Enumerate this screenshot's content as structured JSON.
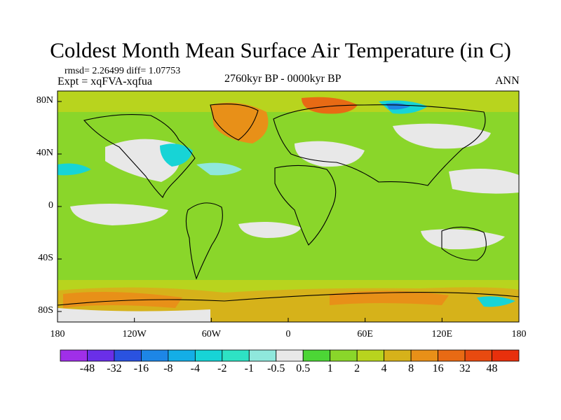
{
  "title": "Coldest Month Mean Surface Air Temperature (in C)",
  "stats": "rmsd= 2.26499 diff= 1.07753",
  "experiment": "Expt = xqFVA-xqfua",
  "period": "2760kyr BP - 0000kyr BP",
  "season": "ANN",
  "lat_labels": [
    "80N",
    "40N",
    "0",
    "40S",
    "80S"
  ],
  "lon_labels": [
    "180",
    "120W",
    "60W",
    "0",
    "60E",
    "120E",
    "180"
  ],
  "colorbar": {
    "labels": [
      "-48",
      "-32",
      "-16",
      "-8",
      "-4",
      "-2",
      "-1",
      "-0.5",
      "0.5",
      "1",
      "2",
      "4",
      "8",
      "16",
      "32",
      "48"
    ],
    "colors": [
      "#a02fe8",
      "#6a2fe8",
      "#2a52e0",
      "#1d86e6",
      "#14aee6",
      "#17d4d6",
      "#2ee2c4",
      "#8fe8dc",
      "#e8e8e8",
      "#4cd636",
      "#8ad62a",
      "#b8d41e",
      "#d6b21a",
      "#e89018",
      "#e86a14",
      "#e84a10",
      "#e8300c"
    ]
  },
  "colors": {
    "base_field": "#8ad62a",
    "near_zero": "#e8e8e8",
    "warm_anomaly": "#e89018",
    "cold_anomaly": "#17d4d6"
  }
}
